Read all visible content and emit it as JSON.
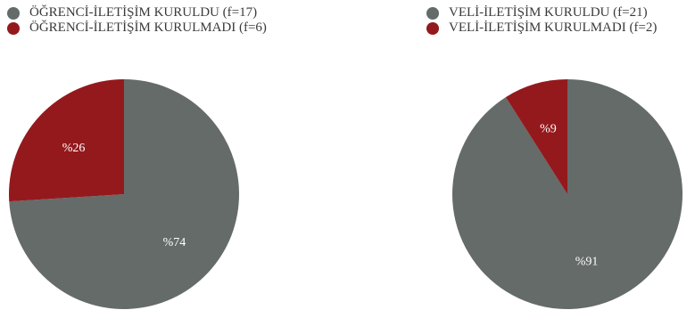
{
  "chart_data": [
    {
      "type": "pie",
      "legend_position": "top-left",
      "slices": [
        {
          "legend": "ÖĞRENCİ-İLETİŞİM KURULDU (f=17)",
          "label": "%74",
          "value": 74,
          "color": "#646b69"
        },
        {
          "legend": "ÖĞRENCİ-İLETİŞİM KURULMADI (f=6)",
          "label": "%26",
          "value": 26,
          "color": "#94191d"
        }
      ]
    },
    {
      "type": "pie",
      "legend_position": "top-left",
      "slices": [
        {
          "legend": "VELİ-İLETİŞİM KURULDU (f=21)",
          "label": "%91",
          "value": 91,
          "color": "#646b69"
        },
        {
          "legend": "VELİ-İLETİŞİM KURULMADI (f=2)",
          "label": "%9",
          "value": 9,
          "color": "#94191d"
        }
      ]
    }
  ]
}
